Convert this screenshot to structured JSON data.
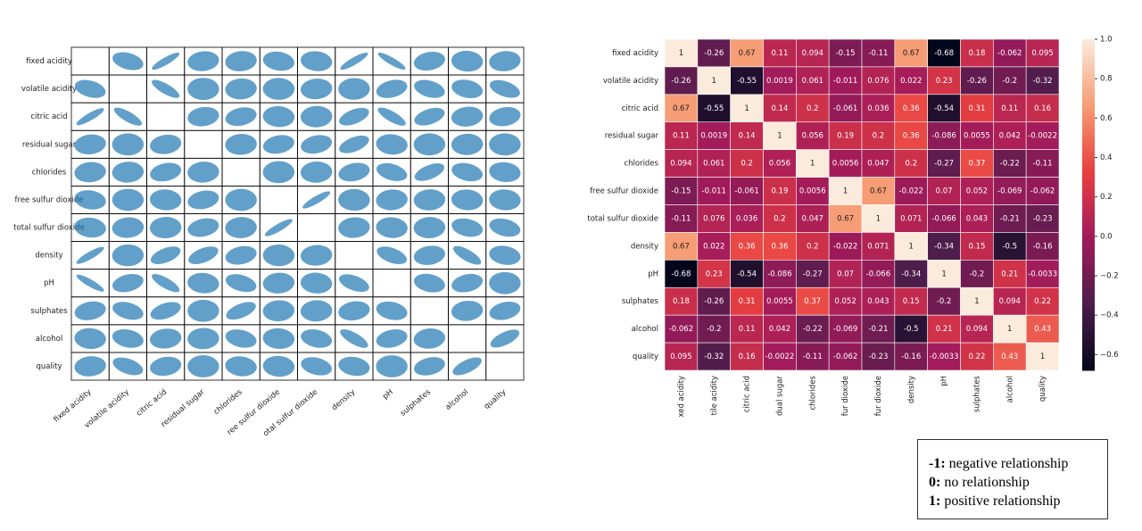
{
  "chart_data": [
    {
      "type": "scatter_matrix",
      "row_labels": [
        "fixed acidity",
        "volatile acidity",
        "citric acid",
        "residual sugar",
        "chlorides",
        "free sulfur dioxide",
        "total sulfur dioxide",
        "density",
        "pH",
        "sulphates",
        "alcohol",
        "quality"
      ],
      "col_labels": [
        "fixed acidity",
        "volatile acidity",
        "citric acid",
        "residual sugar",
        "chlorides",
        "ree sulfur dioxide",
        "otal sulfur dioxide",
        "density",
        "pH",
        "sulphates",
        "alcohol",
        "quality"
      ],
      "color": "#1f77b4"
    },
    {
      "type": "heatmap",
      "row_labels": [
        "fixed acidity",
        "volatile acidity",
        "citric acid",
        "residual sugar",
        "chlorides",
        "free sulfur dioxide",
        "total sulfur dioxide",
        "density",
        "pH",
        "sulphates",
        "alcohol",
        "quality"
      ],
      "col_labels": [
        "xed acidity",
        "tile acidity",
        "citric acid",
        "dual sugar",
        "chlorides",
        "fur dioxide",
        "fur dioxide",
        "density",
        "pH",
        "sulphates",
        "alcohol",
        "quality"
      ],
      "values": [
        [
          1,
          -0.26,
          0.67,
          0.11,
          0.094,
          -0.15,
          -0.11,
          0.67,
          -0.68,
          0.18,
          -0.062,
          0.095
        ],
        [
          -0.26,
          1,
          -0.55,
          0.0019,
          0.061,
          -0.011,
          0.076,
          0.022,
          0.23,
          -0.26,
          -0.2,
          -0.32
        ],
        [
          0.67,
          -0.55,
          1,
          0.14,
          0.2,
          -0.061,
          0.036,
          0.36,
          -0.54,
          0.31,
          0.11,
          0.16
        ],
        [
          0.11,
          0.0019,
          0.14,
          1,
          0.056,
          0.19,
          0.2,
          0.36,
          -0.086,
          0.0055,
          0.042,
          -0.0022
        ],
        [
          0.094,
          0.061,
          0.2,
          0.056,
          1,
          0.0056,
          0.047,
          0.2,
          -0.27,
          0.37,
          -0.22,
          -0.11
        ],
        [
          -0.15,
          -0.011,
          -0.061,
          0.19,
          0.0056,
          1,
          0.67,
          -0.022,
          0.07,
          0.052,
          -0.069,
          -0.062
        ],
        [
          -0.11,
          0.076,
          0.036,
          0.2,
          0.047,
          0.67,
          1,
          0.071,
          -0.066,
          0.043,
          -0.21,
          -0.23
        ],
        [
          0.67,
          0.022,
          0.36,
          0.36,
          0.2,
          -0.022,
          0.071,
          1,
          -0.34,
          0.15,
          -0.5,
          -0.16
        ],
        [
          -0.68,
          0.23,
          -0.54,
          -0.086,
          -0.27,
          0.07,
          -0.066,
          -0.34,
          1,
          -0.2,
          0.21,
          -0.0033
        ],
        [
          0.18,
          -0.26,
          0.31,
          0.0055,
          0.37,
          0.052,
          0.043,
          0.15,
          -0.2,
          1,
          0.094,
          0.22
        ],
        [
          -0.062,
          -0.2,
          0.11,
          0.042,
          -0.22,
          -0.069,
          -0.21,
          -0.5,
          0.21,
          0.094,
          1,
          0.43
        ],
        [
          0.095,
          -0.32,
          0.16,
          -0.0022,
          -0.11,
          -0.062,
          -0.23,
          -0.16,
          -0.0033,
          0.22,
          0.43,
          1
        ]
      ],
      "colorbar_lim": [
        -0.68,
        1
      ],
      "colorbar_ticks": [
        {
          "value": 1,
          "label": "1.0"
        },
        0.8,
        0.6,
        0.4,
        0.2,
        {
          "value": 0,
          "label": "0.0"
        },
        {
          "value": -0.2,
          "label": "−0.2"
        },
        {
          "value": -0.4,
          "label": "−0.4"
        },
        {
          "value": -0.6,
          "label": "−0.6"
        }
      ],
      "colormap": [
        "#03051a",
        "#4c1d4b",
        "#a11a5b",
        "#e83f3f",
        "#f69c73",
        "#faebdd"
      ]
    }
  ],
  "note": [
    {
      "key": "-1:",
      "text": "negative relationship"
    },
    {
      "key": "0:",
      "text": "no relationship"
    },
    {
      "key": "1:",
      "text": "positive relationship"
    }
  ]
}
